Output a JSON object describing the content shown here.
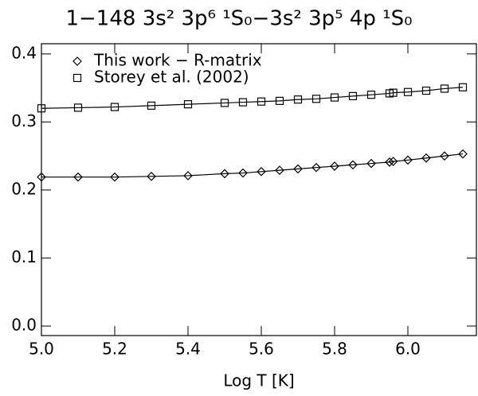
{
  "chart_data": {
    "type": "line",
    "title": "1−148 3s² 3p⁶ ¹S₀−3s² 3p⁵ 4p ¹S₀",
    "x_label": "Log T [K]",
    "x": [
      5.0,
      5.1,
      5.2,
      5.3,
      5.4,
      5.5,
      5.55,
      5.6,
      5.65,
      5.7,
      5.75,
      5.8,
      5.85,
      5.9,
      5.95,
      5.96,
      6.0,
      6.05,
      6.1,
      6.15
    ],
    "series": [
      {
        "name": "This work − R-matrix",
        "color": "#000000",
        "marker": "diamond",
        "values": [
          0.219,
          0.219,
          0.219,
          0.22,
          0.221,
          0.224,
          0.225,
          0.227,
          0.229,
          0.231,
          0.233,
          0.235,
          0.237,
          0.239,
          0.241,
          0.242,
          0.244,
          0.247,
          0.25,
          0.253
        ]
      },
      {
        "name": "Storey et al. (2002)",
        "color": "#000000",
        "marker": "square",
        "values": [
          0.32,
          0.321,
          0.322,
          0.324,
          0.326,
          0.328,
          0.329,
          0.33,
          0.331,
          0.333,
          0.334,
          0.336,
          0.338,
          0.34,
          0.342,
          0.343,
          0.344,
          0.346,
          0.349,
          0.351
        ]
      }
    ],
    "xlim": [
      5.0,
      6.187
    ],
    "ylim": [
      -0.014,
      0.415
    ],
    "xticks": [
      {
        "value": 5.0,
        "label": "5.0"
      },
      5.2,
      5.4,
      5.6,
      5.8,
      {
        "value": 6.0,
        "label": "6.0"
      }
    ],
    "yticks": [
      {
        "value": 0.0,
        "label": "0.0"
      },
      0.1,
      0.2,
      0.3,
      0.4
    ],
    "legend": "top-left"
  }
}
